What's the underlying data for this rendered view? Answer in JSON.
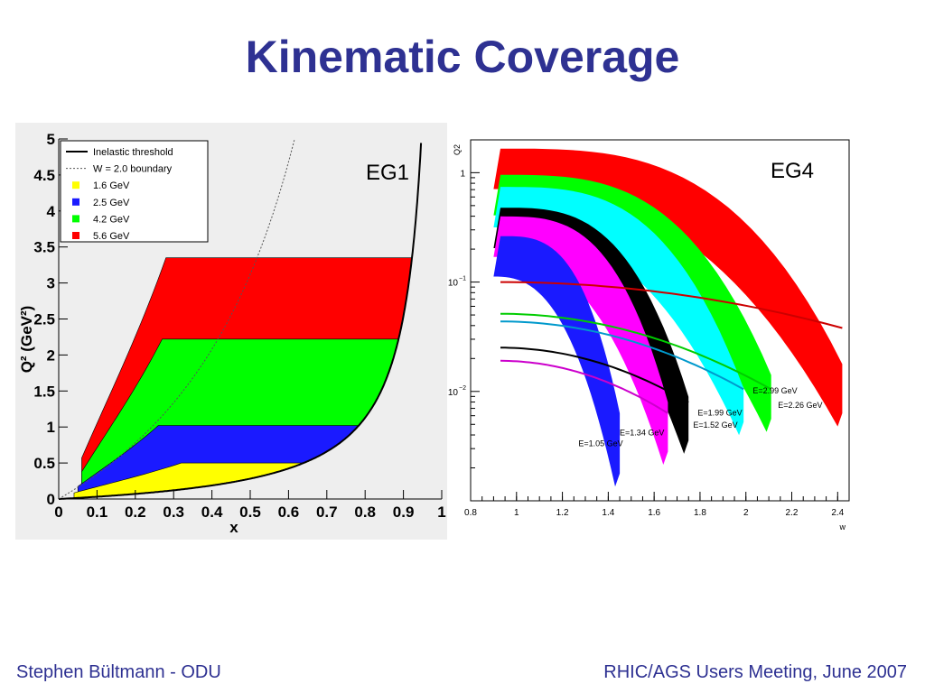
{
  "slide": {
    "title": "Kinematic Coverage",
    "footer_left": "Stephen Bültmann - ODU",
    "footer_right": "RHIC/AGS Users Meeting, June 2007"
  },
  "colors": {
    "title": "#2e3192",
    "yellow": "#ffff00",
    "blue": "#1a1aff",
    "green": "#00ff00",
    "red": "#ff0000",
    "cyan": "#00ffff",
    "magenta": "#ff00ff",
    "black": "#000000"
  },
  "chart_data": [
    {
      "type": "area",
      "label": "EG1",
      "xlabel": "x",
      "ylabel": "Q² (GeV²)",
      "xlim": [
        0,
        1
      ],
      "ylim": [
        0,
        5
      ],
      "x_ticks": [
        "0",
        "0.1",
        "0.2",
        "0.3",
        "0.4",
        "0.5",
        "0.6",
        "0.7",
        "0.8",
        "0.9",
        "1"
      ],
      "y_ticks": [
        "0",
        "0.5",
        "1",
        "1.5",
        "2",
        "2.5",
        "3",
        "3.5",
        "4",
        "4.5",
        "5"
      ],
      "legend_position": "top-left",
      "legend": [
        {
          "name": "Inelastic threshold",
          "style": "solid"
        },
        {
          "name": "W = 2.0 boundary",
          "style": "dotted"
        },
        {
          "name": "1.6 GeV",
          "color": "#ffff00"
        },
        {
          "name": "2.5 GeV",
          "color": "#1a1aff"
        },
        {
          "name": "4.2 GeV",
          "color": "#00ff00"
        },
        {
          "name": "5.6 GeV",
          "color": "#ff0000"
        }
      ],
      "series": [
        {
          "name": "5.6 GeV",
          "color": "#ff0000",
          "x_min": 0.06,
          "q2_max": 3.35,
          "x_corner": 0.28
        },
        {
          "name": "4.2 GeV",
          "color": "#00ff00",
          "x_min": 0.06,
          "q2_max": 2.22,
          "x_corner": 0.27
        },
        {
          "name": "2.5 GeV",
          "color": "#1a1aff",
          "x_min": 0.05,
          "q2_max": 1.02,
          "x_corner": 0.26
        },
        {
          "name": "1.6 GeV",
          "color": "#ffff00",
          "x_min": 0.04,
          "q2_max": 0.5,
          "x_corner": 0.32
        }
      ]
    },
    {
      "type": "area",
      "label": "EG4",
      "xlabel": "w",
      "ylabel": "Q2",
      "xlim": [
        0.8,
        2.45
      ],
      "ylim_log10": [
        -3.0,
        0.3
      ],
      "x_ticks": [
        "0.8",
        "1",
        "1.2",
        "1.4",
        "1.6",
        "1.8",
        "2",
        "2.2",
        "2.4"
      ],
      "y_ticks": [
        "1",
        "10⁻¹",
        "10⁻²"
      ],
      "series": [
        {
          "name": "E=2.99 GeV",
          "color": "#ff0000",
          "w_end": 2.42
        },
        {
          "name": "E=2.26 GeV",
          "color": "#00ff00",
          "w_end": 2.11
        },
        {
          "name": "E=1.99 GeV",
          "color": "#00ffff",
          "w_end": 1.99
        },
        {
          "name": "E=1.52 GeV",
          "color": "#000000",
          "w_end": 1.75
        },
        {
          "name": "E=1.34 GeV",
          "color": "#ff00ff",
          "w_end": 1.66
        },
        {
          "name": "E=1.05 GeV",
          "color": "#1a1aff",
          "w_end": 1.45
        }
      ]
    }
  ]
}
